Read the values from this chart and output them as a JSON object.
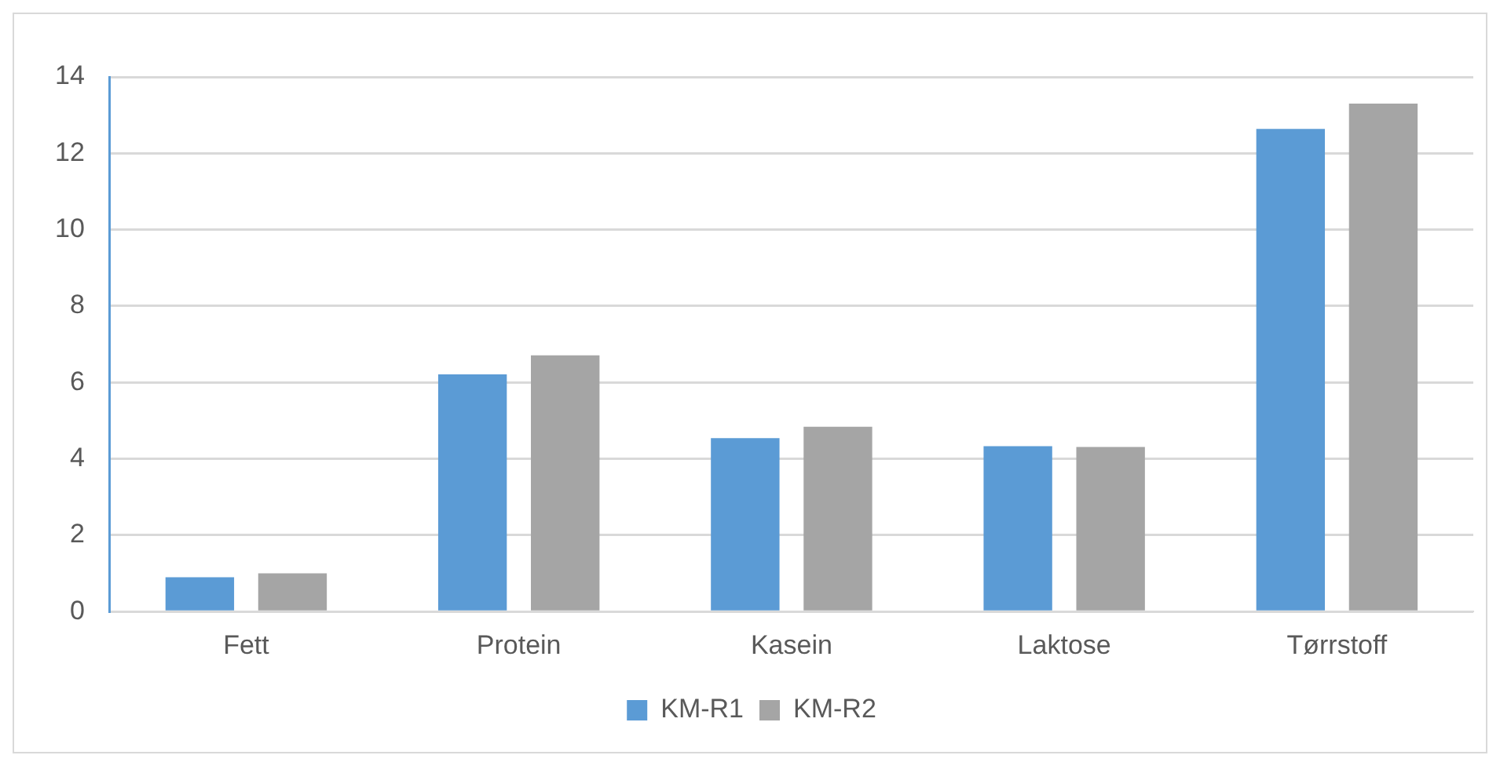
{
  "chart_data": {
    "type": "bar",
    "categories": [
      "Fett",
      "Protein",
      "Kasein",
      "Laktose",
      "Tørrstoff"
    ],
    "series": [
      {
        "name": "KM-R1",
        "color": "#5b9bd5",
        "values": [
          0.9,
          6.21,
          4.54,
          4.33,
          12.64
        ]
      },
      {
        "name": "KM-R2",
        "color": "#a5a5a5",
        "values": [
          1.0,
          6.71,
          4.84,
          4.31,
          13.3
        ]
      }
    ],
    "ylim": [
      0,
      14
    ],
    "yticks": [
      0,
      2,
      4,
      6,
      8,
      10,
      12,
      14
    ],
    "grid": "y",
    "legend": "bottom"
  }
}
